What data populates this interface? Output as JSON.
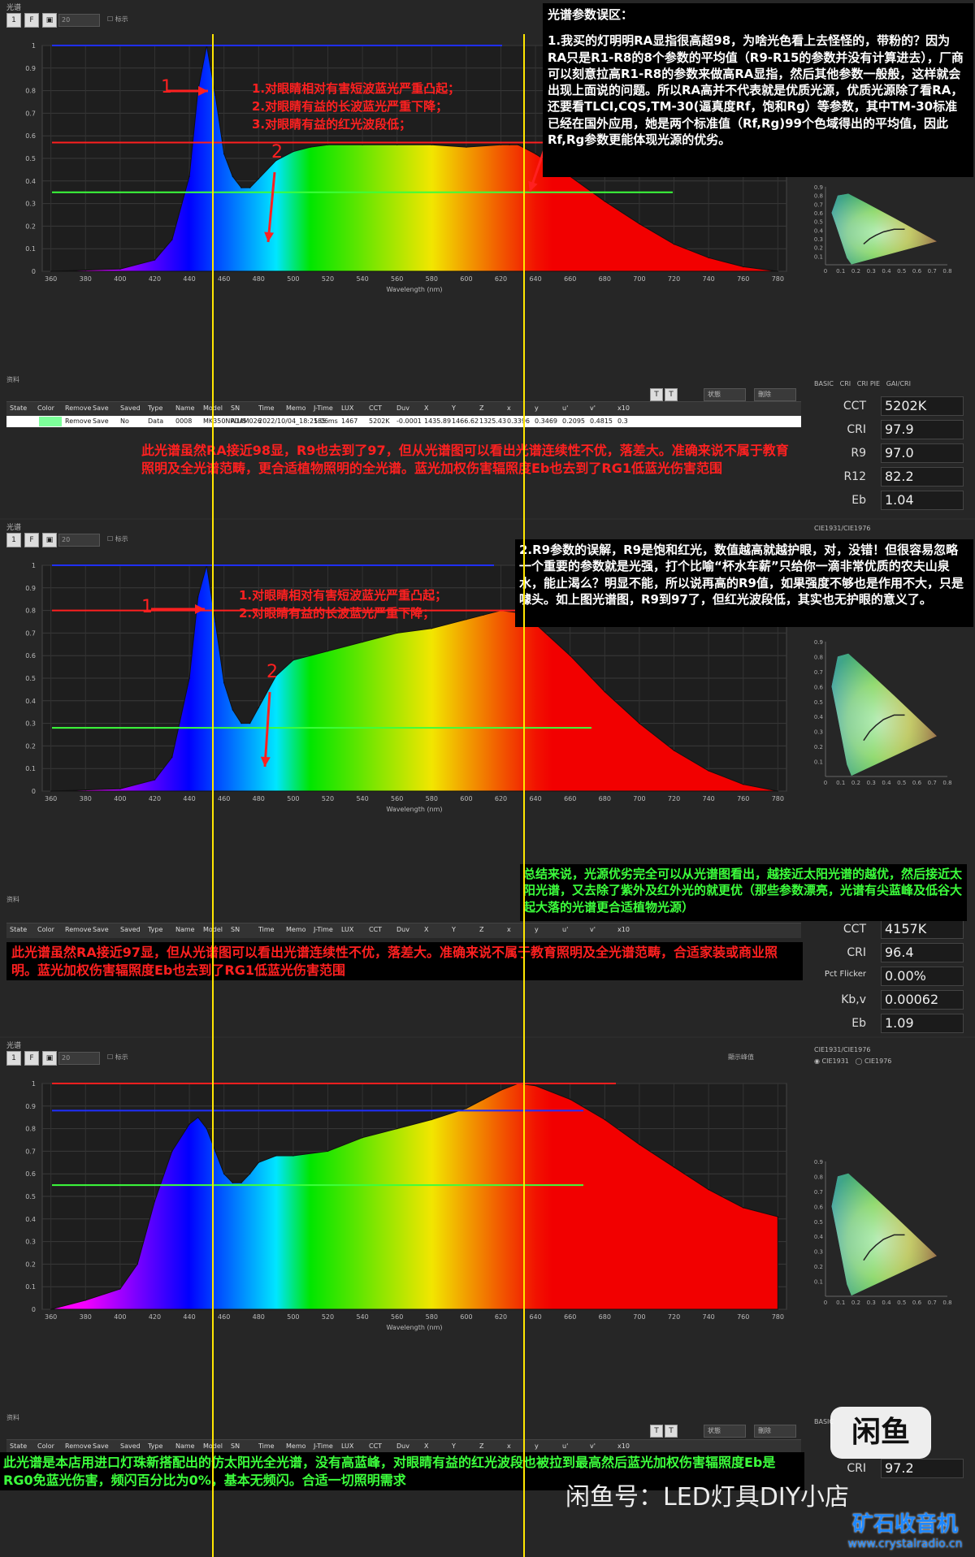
{
  "colors": {
    "bg": "#262626",
    "guide_yellow": "#ffe600",
    "line_blue": "#1f2fff",
    "line_red": "#ff1f1f",
    "line_green": "#3cff3c",
    "caption_red": "#ff2020",
    "caption_green": "#3cff3c"
  },
  "common": {
    "panel_title": "光谱",
    "toolbar_zoom": "20",
    "toolbar_mark": "标示",
    "data_header": "资料",
    "columns": [
      "State",
      "Color",
      "Remove",
      "Save",
      "Saved",
      "Type",
      "Name",
      "Model",
      "SN",
      "Time",
      "Memo",
      "J-Time",
      "LUX",
      "CCT",
      "Duv",
      "X",
      "Y",
      "Z",
      "x",
      "y",
      "u'",
      "v'",
      "x10"
    ],
    "x_axis_label": "Wavelength (nm)",
    "x_ticks": [
      "360",
      "380",
      "400",
      "420",
      "440",
      "460",
      "480",
      "500",
      "520",
      "540",
      "560",
      "580",
      "600",
      "620",
      "640",
      "660",
      "680",
      "700",
      "720",
      "740",
      "760",
      "780"
    ],
    "y_ticks": [
      "0",
      "0.1",
      "0.2",
      "0.3",
      "0.4",
      "0.5",
      "0.6",
      "0.7",
      "0.8",
      "0.9",
      "1"
    ],
    "cie_x_ticks": [
      "0",
      "0.1",
      "0.2",
      "0.3",
      "0.4",
      "0.5",
      "0.6",
      "0.7",
      "0.8"
    ],
    "cie_y_ticks": [
      "0.9",
      "0.8",
      "0.7",
      "0.6",
      "0.5",
      "0.4",
      "0.3",
      "0.2",
      "0.1"
    ],
    "tab_labels": [
      "BASIC",
      "CRI",
      "CRI PIE",
      "GAI/CRI"
    ],
    "dd_status": "状態",
    "dd_delete": "刪除",
    "italic_t": "T",
    "cie_title_2": "CIE1931/CIE1976",
    "cie_radio_1": "CIE1931",
    "cie_radio_2": "CIE1976",
    "peak_show": "顯示峰值"
  },
  "panel1": {
    "metrics": [
      {
        "label": "CCT",
        "value": "5202K"
      },
      {
        "label": "CRI",
        "value": "97.9"
      },
      {
        "label": "R9",
        "value": "97.0"
      },
      {
        "label": "R12",
        "value": "82.2"
      },
      {
        "label": "Eb",
        "value": "1.04"
      }
    ],
    "row": [
      "",
      "",
      "Remove",
      "Save",
      "No",
      "Data",
      "0008",
      "MK350NPLUS",
      "A14M026",
      "2022/10/04_18:25:06",
      "",
      "185 ms",
      "1467",
      "5202K",
      "-0.0001",
      "1435.89",
      "1466.62",
      "1325.43",
      "0.3396",
      "0.3469",
      "0.2095",
      "0.4815",
      "0.3"
    ],
    "markers": [
      "1",
      "2",
      "3"
    ],
    "notes": [
      "1.对眼睛相对有害短波蓝光严重凸起；",
      "2.对眼睛有益的长波蓝光严重下降；",
      "3.对眼睛有益的红光波段低；"
    ],
    "caption": "此光谱虽然RA接近98显，R9也去到了97，但从光谱图可以看出光谱连续性不优，落差大。准确来说不属于教育照明及全光谱范畴，更合适植物照明的全光谱。蓝光加权伤害辐照度Eb也去到了RG1低蓝光伤害范围",
    "info_title": "光谱参数误区：",
    "info_text": "1.我买的灯明明RA显指很高超98，为啥光色看上去怪怪的，带粉的？因为RA只是R1-R8的8个参数的平均值（R9-R15的参数并没有计算进去），厂商可以刻意拉高R1-R8的参数来做高RA显指，然后其他参数一般般，这样就会出现上面说的问题。所以RA高并不代表就是优质光源，优质光源除了看RA，还要看TLCI,CQS,TM-30(逼真度Rf，饱和Rg）等参数，其中TM-30标准已经在国外应用，她是两个标准值（Rf,Rg)99个色域得出的平均值，因此Rf,Rg参数更能体现光源的优劣。"
  },
  "panel2": {
    "metrics": [
      {
        "label": "CCT",
        "value": "4157K"
      },
      {
        "label": "CRI",
        "value": "96.4"
      },
      {
        "label": "Pct Flicker",
        "value": "0.00%"
      },
      {
        "label": "Kb,v",
        "value": "0.00062"
      },
      {
        "label": "Eb",
        "value": "1.09"
      }
    ],
    "markers": [
      "1",
      "2"
    ],
    "notes": [
      "1.对眼睛相对有害短波蓝光严重凸起；",
      "2.对眼睛有益的长波蓝光严重下降；"
    ],
    "caption": "此光谱虽然RA接近97显，但从光谱图可以看出光谱连续性不优，落差大。准确来说不属于教育照明及全光谱范畴，合适家装或商业照明。蓝光加权伤害辐照度Eb也去到了RG1低蓝光伤害范围",
    "info_text": "2.R9参数的误解，R9是饱和红光，数值越高就越护眼，对，没错！但很容易忽略一个重要的参数就是光强，打个比喻“杯水车薪”只给你一滴非常优质的农夫山泉水，能止渴么？明显不能，所以说再高的R9值，如果强度不够也是作用不大，只是噱头。如上图光谱图，R9到97了，但红光波段低，其实也无护眼的意义了。",
    "summary": "总结来说，光源优劣完全可以从光谱图看出，越接近太阳光谱的越优，然后接近太阳光谱，又去除了紫外及红外光的就更优（那些参数漂亮，光谱有尖蓝峰及低谷大起大落的光谱更合适植物光源）"
  },
  "panel3": {
    "metrics": [
      {
        "label": "CRI",
        "value": "97.2"
      }
    ],
    "caption": "此光谱是本店用进口灯珠新搭配出的仿太阳光全光谱，没有高蓝峰，对眼睛有益的红光波段也被拉到最高然后蓝光加权伤害辐照度Eb是RG0免蓝光伤害，频闪百分比为0%，基本无频闪。合适一切照明需求",
    "watermark_left": "闲鱼号：LED灯具DIY小店",
    "logo_text": "闲鱼",
    "logo2_text": "矿石收音机",
    "logo2_url": "www.crystalradio.cn"
  },
  "chart_data": [
    {
      "type": "area",
      "title": "",
      "xlabel": "Wavelength (nm)",
      "ylabel": "",
      "xlim": [
        355,
        785
      ],
      "ylim": [
        0,
        1
      ],
      "x": [
        360,
        380,
        400,
        420,
        430,
        440,
        445,
        450,
        455,
        460,
        465,
        470,
        475,
        480,
        490,
        500,
        510,
        520,
        540,
        560,
        580,
        600,
        620,
        625,
        630,
        640,
        660,
        680,
        700,
        720,
        740,
        760,
        780
      ],
      "y": [
        0.0,
        0.005,
        0.01,
        0.05,
        0.14,
        0.42,
        0.8,
        1.0,
        0.78,
        0.52,
        0.42,
        0.37,
        0.37,
        0.41,
        0.49,
        0.53,
        0.55,
        0.56,
        0.56,
        0.56,
        0.56,
        0.55,
        0.56,
        0.56,
        0.56,
        0.52,
        0.42,
        0.31,
        0.21,
        0.12,
        0.06,
        0.02,
        0.0
      ],
      "reference_lines": [
        {
          "color": "#1f2fff",
          "value": 1.0
        },
        {
          "color": "#ff1f1f",
          "value": 0.57
        },
        {
          "color": "#3cff3c",
          "value": 0.35
        }
      ],
      "cct": "5202K",
      "cri": "97.9",
      "r9": "97.0",
      "r12": "82.2",
      "eb": "1.04"
    },
    {
      "type": "area",
      "title": "",
      "xlabel": "Wavelength (nm)",
      "ylabel": "",
      "xlim": [
        355,
        785
      ],
      "ylim": [
        0,
        1
      ],
      "x": [
        360,
        380,
        400,
        420,
        430,
        440,
        445,
        450,
        455,
        460,
        465,
        470,
        475,
        480,
        490,
        500,
        520,
        540,
        560,
        580,
        600,
        610,
        620,
        630,
        640,
        660,
        680,
        700,
        720,
        740,
        760,
        780
      ],
      "y": [
        0.0,
        0.005,
        0.01,
        0.05,
        0.15,
        0.5,
        0.86,
        1.0,
        0.75,
        0.48,
        0.36,
        0.3,
        0.3,
        0.37,
        0.51,
        0.58,
        0.62,
        0.66,
        0.7,
        0.72,
        0.76,
        0.78,
        0.8,
        0.79,
        0.74,
        0.6,
        0.44,
        0.3,
        0.18,
        0.09,
        0.03,
        0.0
      ],
      "reference_lines": [
        {
          "color": "#1f2fff",
          "value": 1.0
        },
        {
          "color": "#ff1f1f",
          "value": 0.8
        },
        {
          "color": "#3cff3c",
          "value": 0.28
        }
      ],
      "cct": "4157K",
      "cri": "96.4",
      "pct_flicker": "0.00%",
      "kbv": "0.00062",
      "eb": "1.09"
    },
    {
      "type": "area",
      "title": "",
      "xlabel": "Wavelength (nm)",
      "ylabel": "",
      "xlim": [
        355,
        785
      ],
      "ylim": [
        0,
        1
      ],
      "x": [
        360,
        380,
        400,
        410,
        420,
        430,
        440,
        445,
        450,
        455,
        460,
        465,
        470,
        475,
        480,
        490,
        500,
        520,
        540,
        560,
        580,
        600,
        610,
        620,
        630,
        640,
        660,
        680,
        700,
        720,
        740,
        760,
        780
      ],
      "y": [
        0.0,
        0.04,
        0.09,
        0.2,
        0.48,
        0.7,
        0.82,
        0.85,
        0.8,
        0.7,
        0.6,
        0.56,
        0.56,
        0.6,
        0.65,
        0.68,
        0.68,
        0.7,
        0.76,
        0.8,
        0.84,
        0.89,
        0.93,
        0.97,
        1.0,
        0.99,
        0.93,
        0.84,
        0.73,
        0.63,
        0.53,
        0.45,
        0.41
      ],
      "reference_lines": [
        {
          "color": "#ff1f1f",
          "value": 1.0
        },
        {
          "color": "#1f2fff",
          "value": 0.88
        },
        {
          "color": "#3cff3c",
          "value": 0.55
        }
      ],
      "cri": "97.2"
    }
  ]
}
